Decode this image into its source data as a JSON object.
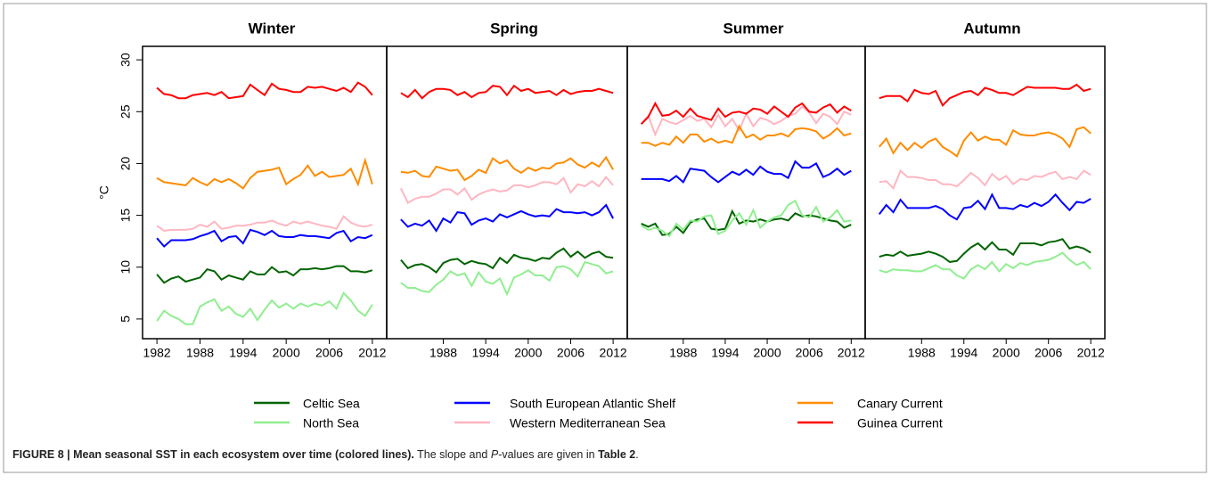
{
  "chart_data": {
    "type": "line",
    "y_label": "°C",
    "ylim": [
      3.1,
      31.3
    ],
    "yticks": [
      5,
      10,
      15,
      20,
      25,
      30
    ],
    "xlim": [
      1980,
      2014
    ],
    "x": [
      1982,
      1983,
      1984,
      1985,
      1986,
      1987,
      1988,
      1989,
      1990,
      1991,
      1992,
      1993,
      1994,
      1995,
      1996,
      1997,
      1998,
      1999,
      2000,
      2001,
      2002,
      2003,
      2004,
      2005,
      2006,
      2007,
      2008,
      2009,
      2010,
      2011,
      2012
    ],
    "series": [
      {
        "name": "Celtic Sea",
        "color": "#006400"
      },
      {
        "name": "North Sea",
        "color": "#90ee90"
      },
      {
        "name": "South European Atlantic Shelf",
        "color": "#0000ff"
      },
      {
        "name": "Western Mediterranean Sea",
        "color": "#ffb6c1"
      },
      {
        "name": "Canary Current",
        "color": "#ff8c00"
      },
      {
        "name": "Guinea Current",
        "color": "#ff0000"
      }
    ],
    "panels": [
      {
        "title": "Winter",
        "xticks": [
          1982,
          1988,
          1994,
          2000,
          2006,
          2012
        ],
        "series": [
          {
            "values": [
              9.3,
              8.5,
              8.9,
              9.1,
              8.6,
              8.8,
              9.0,
              9.8,
              9.6,
              8.8,
              9.2,
              9.0,
              8.8,
              9.6,
              9.3,
              9.3,
              10.0,
              9.5,
              9.6,
              9.2,
              9.8,
              9.8,
              9.9,
              9.8,
              9.9,
              10.1,
              10.1,
              9.6,
              9.6,
              9.5,
              9.7
            ]
          },
          {
            "values": [
              4.8,
              5.8,
              5.3,
              5.0,
              4.5,
              4.5,
              6.2,
              6.6,
              6.9,
              5.8,
              6.2,
              5.5,
              5.2,
              6.0,
              4.9,
              5.9,
              6.8,
              6.1,
              6.5,
              6.0,
              6.5,
              6.2,
              6.5,
              6.3,
              6.7,
              6.0,
              7.5,
              6.8,
              5.8,
              5.3,
              6.4
            ]
          },
          {
            "values": [
              12.8,
              12.0,
              12.6,
              12.6,
              12.6,
              12.7,
              13.0,
              13.2,
              13.5,
              12.5,
              12.9,
              13.0,
              12.3,
              13.6,
              13.4,
              13.1,
              13.5,
              13.0,
              12.9,
              12.9,
              13.1,
              13.0,
              13.0,
              12.9,
              12.8,
              13.3,
              13.5,
              12.5,
              12.9,
              12.8,
              13.1
            ]
          },
          {
            "values": [
              14.0,
              13.5,
              13.6,
              13.6,
              13.6,
              13.7,
              14.1,
              13.9,
              14.4,
              13.7,
              13.8,
              14.0,
              14.0,
              14.1,
              14.3,
              14.3,
              14.5,
              14.2,
              14.0,
              14.4,
              14.2,
              14.4,
              14.2,
              14.0,
              13.9,
              13.7,
              14.9,
              14.3,
              14.0,
              13.9,
              14.1
            ]
          },
          {
            "values": [
              18.6,
              18.2,
              18.1,
              18.0,
              17.9,
              18.6,
              18.2,
              17.9,
              18.5,
              18.2,
              18.5,
              18.1,
              17.6,
              18.6,
              19.2,
              19.3,
              19.4,
              19.6,
              18.0,
              18.5,
              18.9,
              19.8,
              18.8,
              19.2,
              18.7,
              18.8,
              18.9,
              19.5,
              18.0,
              20.3,
              18.0
            ]
          },
          {
            "values": [
              27.3,
              26.7,
              26.6,
              26.3,
              26.3,
              26.6,
              26.7,
              26.8,
              26.6,
              26.9,
              26.3,
              26.4,
              26.5,
              27.6,
              27.1,
              26.6,
              27.7,
              27.2,
              27.1,
              26.9,
              26.9,
              27.4,
              27.3,
              27.4,
              27.2,
              27.0,
              27.3,
              26.9,
              27.8,
              27.4,
              26.6
            ]
          }
        ]
      },
      {
        "title": "Spring",
        "xticks": [
          1988,
          1994,
          2000,
          2006,
          2012
        ],
        "series": [
          {
            "values": [
              10.7,
              9.9,
              10.2,
              10.3,
              10.0,
              9.5,
              10.4,
              10.7,
              10.8,
              10.3,
              10.6,
              10.4,
              10.3,
              9.9,
              10.9,
              10.4,
              11.2,
              10.9,
              10.8,
              10.6,
              10.9,
              10.8,
              11.4,
              11.8,
              11.0,
              11.5,
              10.9,
              11.3,
              11.5,
              11.0,
              10.9
            ]
          },
          {
            "values": [
              8.5,
              8.0,
              8.0,
              7.7,
              7.6,
              8.3,
              8.8,
              9.6,
              9.2,
              9.4,
              8.2,
              9.5,
              8.6,
              8.4,
              8.9,
              7.4,
              9.0,
              9.3,
              9.7,
              9.2,
              9.2,
              8.7,
              10.0,
              10.1,
              9.8,
              9.1,
              10.5,
              10.3,
              10.1,
              9.4,
              9.6
            ]
          },
          {
            "values": [
              14.6,
              13.9,
              14.2,
              14.0,
              14.5,
              13.5,
              14.7,
              14.3,
              15.3,
              15.2,
              14.1,
              14.5,
              14.7,
              14.4,
              15.1,
              14.8,
              15.1,
              15.4,
              15.1,
              14.9,
              15.0,
              14.9,
              15.6,
              15.3,
              15.3,
              15.2,
              15.3,
              15.0,
              15.3,
              16.0,
              14.7
            ]
          },
          {
            "values": [
              17.6,
              16.2,
              16.6,
              16.8,
              16.8,
              17.1,
              17.5,
              17.5,
              17.0,
              17.6,
              16.5,
              17.0,
              17.3,
              17.5,
              17.3,
              17.4,
              17.9,
              17.9,
              17.7,
              17.9,
              18.2,
              18.2,
              18.0,
              18.6,
              17.2,
              18.0,
              17.8,
              18.3,
              17.8,
              18.7,
              17.9
            ]
          },
          {
            "values": [
              19.2,
              19.1,
              19.3,
              18.8,
              18.7,
              19.7,
              19.5,
              19.3,
              19.4,
              18.4,
              18.8,
              19.4,
              19.1,
              20.5,
              20.0,
              20.3,
              19.5,
              19.1,
              19.6,
              19.3,
              19.6,
              19.5,
              20.0,
              20.1,
              20.5,
              19.9,
              19.6,
              20.1,
              19.7,
              20.6,
              19.4
            ]
          },
          {
            "values": [
              26.8,
              26.4,
              27.1,
              26.3,
              26.9,
              27.2,
              27.2,
              27.1,
              26.6,
              26.9,
              26.4,
              26.8,
              26.9,
              27.5,
              27.4,
              26.6,
              27.5,
              27.0,
              27.2,
              26.8,
              26.9,
              27.0,
              26.6,
              27.1,
              26.7,
              26.9,
              27.0,
              27.0,
              27.2,
              27.0,
              26.8
            ]
          }
        ]
      },
      {
        "title": "Summer",
        "xticks": [
          1988,
          1994,
          2000,
          2006,
          2012
        ],
        "series": [
          {
            "values": [
              14.2,
              13.9,
              14.2,
              13.1,
              13.2,
              13.9,
              13.3,
              14.3,
              14.6,
              14.7,
              13.7,
              13.6,
              13.7,
              15.4,
              14.2,
              14.5,
              14.4,
              14.6,
              14.4,
              14.6,
              14.7,
              14.5,
              15.2,
              14.9,
              15.0,
              14.9,
              14.7,
              14.5,
              14.4,
              13.8,
              14.1
            ]
          },
          {
            "values": [
              14.0,
              13.6,
              13.8,
              13.5,
              13.0,
              14.2,
              13.6,
              14.5,
              14.4,
              14.9,
              15.0,
              13.2,
              13.5,
              14.5,
              15.2,
              14.1,
              15.5,
              13.8,
              14.4,
              14.8,
              15.0,
              16.0,
              16.4,
              15.0,
              14.8,
              15.8,
              14.4,
              14.8,
              15.5,
              14.4,
              14.5
            ]
          },
          {
            "values": [
              18.5,
              18.5,
              18.5,
              18.5,
              18.3,
              18.8,
              18.2,
              19.5,
              19.4,
              19.3,
              18.7,
              18.2,
              18.7,
              19.2,
              18.9,
              19.4,
              18.9,
              19.7,
              19.2,
              19.0,
              19.0,
              18.6,
              20.2,
              19.6,
              19.6,
              20.0,
              18.7,
              19.0,
              19.5,
              18.9,
              19.3
            ]
          },
          {
            "values": [
              23.8,
              24.6,
              22.8,
              24.3,
              24.0,
              23.8,
              24.2,
              24.6,
              24.1,
              24.3,
              23.5,
              24.7,
              23.6,
              24.3,
              23.2,
              24.8,
              23.6,
              24.4,
              24.2,
              23.8,
              24.1,
              24.6,
              24.8,
              25.5,
              24.9,
              23.9,
              24.8,
              24.5,
              23.8,
              25.0,
              24.7
            ]
          },
          {
            "values": [
              22.0,
              22.0,
              21.7,
              22.0,
              21.8,
              22.6,
              22.0,
              22.8,
              22.8,
              22.1,
              22.4,
              22.0,
              22.2,
              22.0,
              23.6,
              22.5,
              22.8,
              22.3,
              22.7,
              22.7,
              22.9,
              22.6,
              23.3,
              23.4,
              23.3,
              23.1,
              22.4,
              22.8,
              23.4,
              22.7,
              22.9
            ]
          },
          {
            "values": [
              23.8,
              24.5,
              25.8,
              24.6,
              24.7,
              25.1,
              24.5,
              25.3,
              24.6,
              24.4,
              24.2,
              25.3,
              24.5,
              24.9,
              25.0,
              24.8,
              25.3,
              25.2,
              24.8,
              25.5,
              25.0,
              24.5,
              25.4,
              25.8,
              25.0,
              24.9,
              25.4,
              25.7,
              24.9,
              25.5,
              25.1
            ]
          }
        ]
      },
      {
        "title": "Autumn",
        "xticks": [
          1988,
          1994,
          2000,
          2006,
          2012
        ],
        "series": [
          {
            "values": [
              11.0,
              11.2,
              11.1,
              11.5,
              11.1,
              11.2,
              11.3,
              11.5,
              11.3,
              11.0,
              10.5,
              10.6,
              11.3,
              11.9,
              12.3,
              11.7,
              12.4,
              11.7,
              11.7,
              11.2,
              12.3,
              12.3,
              12.3,
              12.1,
              12.4,
              12.5,
              12.7,
              11.8,
              12.0,
              11.8,
              11.4
            ]
          },
          {
            "values": [
              9.7,
              9.5,
              9.8,
              9.7,
              9.7,
              9.6,
              9.6,
              9.9,
              10.2,
              9.8,
              9.8,
              9.2,
              8.9,
              9.8,
              10.2,
              9.8,
              10.5,
              9.6,
              10.3,
              9.9,
              10.4,
              10.2,
              10.5,
              10.6,
              10.7,
              11.0,
              11.4,
              10.7,
              10.2,
              10.5,
              9.8
            ]
          },
          {
            "values": [
              15.1,
              16.0,
              15.3,
              16.5,
              15.7,
              15.7,
              15.7,
              15.7,
              15.9,
              15.6,
              15.0,
              14.6,
              15.7,
              15.8,
              16.4,
              15.6,
              17.0,
              15.7,
              15.7,
              15.6,
              16.0,
              15.8,
              16.2,
              15.9,
              16.3,
              17.0,
              16.2,
              15.5,
              16.3,
              16.2,
              16.6
            ]
          },
          {
            "values": [
              18.2,
              18.3,
              17.6,
              19.3,
              18.7,
              18.7,
              18.6,
              18.4,
              18.4,
              18.0,
              18.0,
              17.8,
              18.4,
              19.1,
              18.6,
              17.9,
              19.0,
              18.4,
              18.8,
              18.0,
              18.5,
              18.4,
              18.8,
              18.7,
              19.0,
              19.2,
              18.5,
              18.7,
              18.5,
              19.3,
              18.9
            ]
          },
          {
            "values": [
              21.6,
              22.4,
              21.0,
              22.0,
              21.3,
              22.0,
              21.5,
              22.1,
              22.4,
              21.6,
              21.2,
              20.7,
              22.2,
              23.0,
              22.2,
              22.6,
              22.3,
              22.3,
              21.8,
              23.2,
              22.8,
              22.7,
              22.7,
              22.9,
              23.0,
              22.8,
              22.4,
              21.6,
              23.3,
              23.5,
              22.9
            ]
          },
          {
            "values": [
              26.3,
              26.5,
              26.5,
              26.5,
              26.0,
              27.1,
              26.8,
              26.7,
              27.0,
              25.6,
              26.3,
              26.6,
              26.9,
              27.0,
              26.6,
              27.3,
              27.1,
              26.8,
              26.8,
              26.6,
              27.0,
              27.4,
              27.3,
              27.3,
              27.3,
              27.3,
              27.2,
              27.2,
              27.6,
              27.0,
              27.2
            ]
          }
        ]
      }
    ]
  },
  "caption": [
    "FIGURE 8 | Mean seasonal SST in each ecosystem over time (colored lines).",
    "The slope and",
    "P",
    "-values are given in",
    "Table 2",
    "."
  ]
}
